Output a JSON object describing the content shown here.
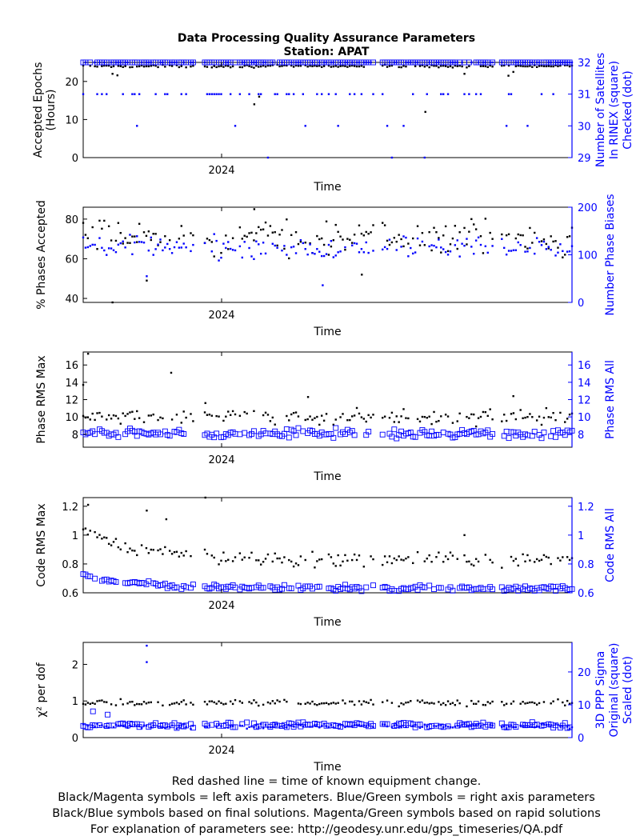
{
  "title": "Data Processing Quality Assurance Parameters",
  "subtitle": "Station: APAT",
  "footer": [
    "Red dashed line = time of known equipment change.",
    "Black/Magenta symbols = left axis parameters. Blue/Green symbols = right axis parameters",
    "Black/Blue symbols based on final solutions.  Magenta/Green symbols based on rapid solutions",
    "For explanation of parameters see: http://geodesy.unr.edu/gps_timeseries/QA.pdf"
  ],
  "colors": {
    "left": "#000000",
    "right": "#0000ff",
    "axis": "#000000"
  },
  "chart_data": [
    {
      "id": "p1",
      "type": "scatter",
      "xlabel": "Time",
      "xtick": "2024",
      "ylabel": [
        "Accepted Epochs",
        "(Hours)"
      ],
      "yrlabel": [
        "Number of Satellites",
        "In RINEX (square)",
        "Checked (dot)"
      ],
      "ylim": [
        0,
        25
      ],
      "yticks": [
        0,
        10,
        20
      ],
      "yrlim": [
        29,
        32
      ],
      "yrticks": [
        29,
        30,
        31,
        32
      ],
      "series": [
        {
          "axis": "left",
          "marker": "dot",
          "profile": "const",
          "base": 24,
          "spread": 0.3,
          "outliers": [
            [
              0.06,
              22
            ],
            [
              0.07,
              21.6
            ],
            [
              0.35,
              14
            ],
            [
              0.36,
              16
            ],
            [
              0.7,
              12
            ],
            [
              0.78,
              22
            ],
            [
              0.87,
              21.5
            ],
            [
              0.88,
              22.5
            ]
          ]
        },
        {
          "axis": "right",
          "marker": "square",
          "profile": "const",
          "base": 32,
          "spread": 0
        },
        {
          "axis": "right",
          "marker": "dot",
          "profile": "levels",
          "levels": [
            32,
            31,
            30,
            29
          ],
          "weights": [
            0.6,
            0.3,
            0.08,
            0.02
          ]
        }
      ]
    },
    {
      "id": "p2",
      "type": "scatter",
      "xlabel": "Time",
      "xtick": "2024",
      "ylabel": [
        "% Phases Accepted"
      ],
      "yrlabel": [
        "Number Phase Biases"
      ],
      "ylim": [
        38,
        86
      ],
      "yticks": [
        40,
        60,
        80
      ],
      "yrlim": [
        0,
        200
      ],
      "yrticks": [
        0,
        100,
        200
      ],
      "series": [
        {
          "axis": "left",
          "marker": "dot",
          "profile": "const",
          "base": 71,
          "spread": 8,
          "outliers": [
            [
              0.06,
              38
            ],
            [
              0.13,
              49
            ],
            [
              0.35,
              85
            ],
            [
              0.57,
              52
            ]
          ]
        },
        {
          "axis": "right",
          "marker": "dot",
          "profile": "const",
          "base": 115,
          "spread": 22,
          "outliers": [
            [
              0.49,
              36
            ],
            [
              0.13,
              55
            ]
          ]
        }
      ]
    },
    {
      "id": "p3",
      "type": "scatter",
      "xlabel": "Time",
      "xtick": "2024",
      "ylabel": [
        "Phase RMS Max"
      ],
      "yrlabel": [
        "Phase RMS All"
      ],
      "ylim": [
        6.5,
        17.5
      ],
      "yticks": [
        8,
        10,
        12,
        14,
        16
      ],
      "yrlim": [
        6.5,
        17.5
      ],
      "yrticks": [
        8,
        10,
        12,
        14,
        16
      ],
      "series": [
        {
          "axis": "left",
          "marker": "dot",
          "profile": "const",
          "base": 10,
          "spread": 0.8,
          "outliers": [
            [
              0.0,
              13.7
            ],
            [
              0.01,
              17.3
            ],
            [
              0.18,
              15.1
            ],
            [
              0.25,
              11.6
            ],
            [
              0.46,
              12.3
            ],
            [
              0.88,
              12.4
            ]
          ]
        },
        {
          "axis": "right",
          "marker": "square",
          "profile": "const",
          "base": 8.1,
          "spread": 0.5
        }
      ]
    },
    {
      "id": "p4",
      "type": "scatter",
      "xlabel": "Time",
      "xtick": "2024",
      "ylabel": [
        "Code RMS Max"
      ],
      "yrlabel": [
        "Code RMS All"
      ],
      "ylim": [
        0.6,
        1.26
      ],
      "yticks": [
        0.6,
        0.8,
        1.0,
        1.2
      ],
      "yrlim": [
        0.6,
        1.26
      ],
      "yrticks": [
        0.6,
        0.8,
        1.0,
        1.2
      ],
      "series": [
        {
          "axis": "left",
          "marker": "dot",
          "profile": "decay",
          "base": 0.83,
          "start": 1.02,
          "spread": 0.05,
          "outliers": [
            [
              0.01,
              1.21
            ],
            [
              0.13,
              1.17
            ],
            [
              0.17,
              1.11
            ],
            [
              0.25,
              1.26
            ],
            [
              0.78,
              1.0
            ]
          ]
        },
        {
          "axis": "right",
          "marker": "square",
          "profile": "decay",
          "base": 0.63,
          "start": 0.72,
          "spread": 0.02
        }
      ]
    },
    {
      "id": "p5",
      "type": "scatter",
      "xlabel": "Time",
      "xtick": "2024",
      "ylabel": [
        "χ² per dof"
      ],
      "yrlabel": [
        "3D PPP Sigma",
        "Original (square)",
        "Scaled (dot)"
      ],
      "ylim": [
        0,
        2.6
      ],
      "yticks": [
        0,
        1,
        2
      ],
      "yrlim": [
        0,
        29
      ],
      "yrticks": [
        0,
        10,
        20
      ],
      "series": [
        {
          "axis": "left",
          "marker": "dot",
          "profile": "const",
          "base": 0.95,
          "spread": 0.08
        },
        {
          "axis": "right",
          "marker": "square",
          "profile": "const",
          "base": 3.8,
          "spread": 0.8,
          "outliers": [
            [
              0.02,
              8
            ],
            [
              0.05,
              7
            ]
          ]
        },
        {
          "axis": "right",
          "marker": "dot",
          "profile": "const",
          "base": 3.5,
          "spread": 0.7,
          "outliers": [
            [
              0.13,
              23
            ],
            [
              0.13,
              28
            ]
          ]
        }
      ]
    }
  ]
}
